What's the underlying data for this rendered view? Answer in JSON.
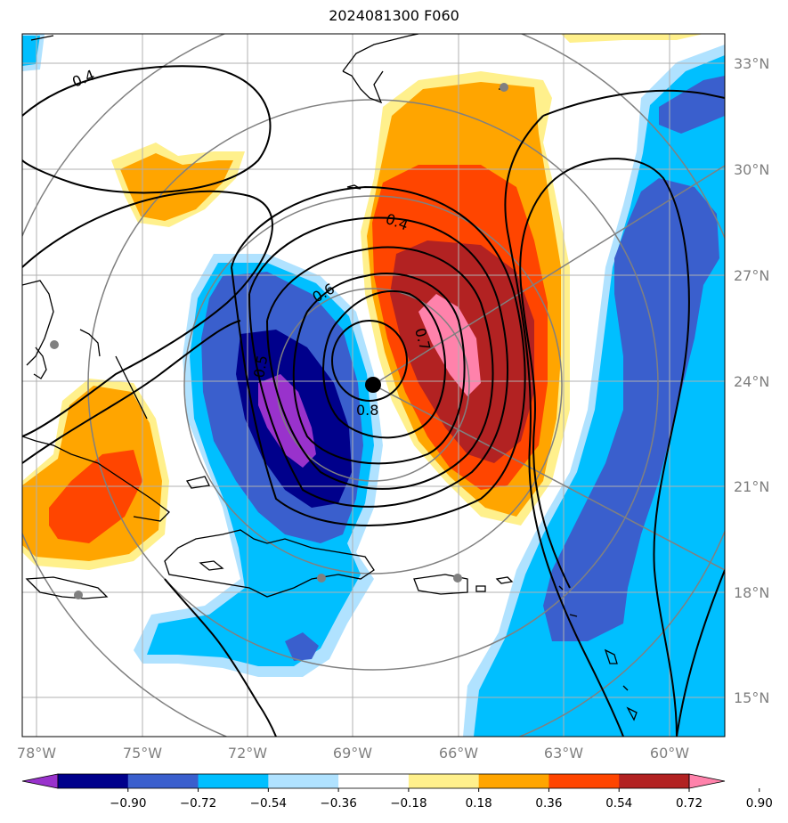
{
  "title": "2024081300 F060",
  "lat_labels": [
    "33°N",
    "30°N",
    "27°N",
    "24°N",
    "21°N",
    "18°N",
    "15°N"
  ],
  "lon_labels": [
    "78°W",
    "75°W",
    "72°W",
    "69°W",
    "66°W",
    "63°W",
    "60°W"
  ],
  "colorbar": {
    "ticks": [
      "−0.90",
      "−0.72",
      "−0.54",
      "−0.36",
      "−0.18",
      "0.18",
      "0.36",
      "0.54",
      "0.72",
      "0.90"
    ],
    "colors": [
      "#9932cc",
      "#00008b",
      "#3a5fcd",
      "#00bfff",
      "#b0e2ff",
      "#ffffff",
      "#fff08c",
      "#ffa500",
      "#ff4500",
      "#b22222",
      "#ff82ab"
    ]
  },
  "contour_labels": [
    "0.4",
    "0.4",
    "0.6",
    "0.5",
    "0.7",
    "0.8"
  ],
  "center_marker": "storm-center"
}
